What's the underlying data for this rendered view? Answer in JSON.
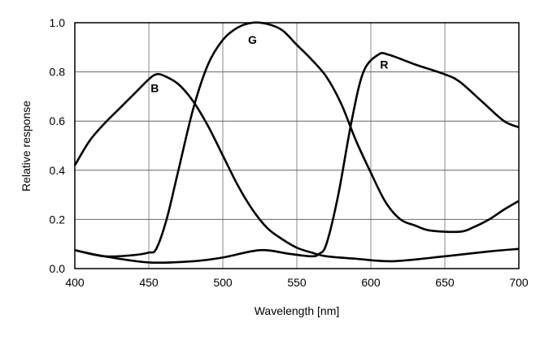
{
  "chart_data": {
    "type": "line",
    "title": "",
    "xlabel": "Wavelength [nm]",
    "ylabel": "Relative response",
    "xlim": [
      400,
      700
    ],
    "ylim": [
      0,
      1.0
    ],
    "xticks": [
      "400",
      "450",
      "500",
      "550",
      "600",
      "650",
      "700"
    ],
    "yticks": [
      "0.0",
      "0.2",
      "0.4",
      "0.6",
      "0.8",
      "1.0"
    ],
    "grid": true,
    "line_color": "#000000",
    "series": [
      {
        "name": "B",
        "label_at": [
          454,
          0.735
        ],
        "x": [
          400,
          410,
          420,
          430,
          440,
          450,
          455,
          460,
          470,
          480,
          490,
          500,
          510,
          520,
          530,
          540,
          550,
          560,
          570,
          590,
          615,
          650,
          680,
          700
        ],
        "y": [
          0.42,
          0.52,
          0.59,
          0.65,
          0.71,
          0.77,
          0.79,
          0.785,
          0.75,
          0.68,
          0.58,
          0.46,
          0.34,
          0.24,
          0.165,
          0.12,
          0.085,
          0.065,
          0.05,
          0.04,
          0.03,
          0.05,
          0.07,
          0.08
        ]
      },
      {
        "name": "G",
        "label_at": [
          520,
          0.93
        ],
        "x": [
          400,
          420,
          440,
          450,
          455,
          462,
          470,
          480,
          490,
          500,
          510,
          520,
          530,
          540,
          550,
          560,
          570,
          580,
          590,
          600,
          610,
          620,
          630,
          640,
          660,
          670,
          680,
          690,
          700
        ],
        "y": [
          0.075,
          0.05,
          0.055,
          0.065,
          0.08,
          0.2,
          0.4,
          0.65,
          0.83,
          0.93,
          0.98,
          1.0,
          0.995,
          0.97,
          0.91,
          0.85,
          0.78,
          0.67,
          0.52,
          0.39,
          0.27,
          0.2,
          0.175,
          0.155,
          0.15,
          0.17,
          0.2,
          0.24,
          0.275
        ]
      },
      {
        "name": "R",
        "label_at": [
          609,
          0.83
        ],
        "x": [
          400,
          420,
          450,
          480,
          500,
          525,
          545,
          560,
          565,
          570,
          578,
          587,
          595,
          605,
          612,
          630,
          650,
          660,
          675,
          690,
          700
        ],
        "y": [
          0.075,
          0.05,
          0.025,
          0.03,
          0.045,
          0.075,
          0.06,
          0.05,
          0.06,
          0.1,
          0.3,
          0.6,
          0.8,
          0.87,
          0.87,
          0.83,
          0.79,
          0.76,
          0.68,
          0.6,
          0.575
        ]
      }
    ]
  }
}
